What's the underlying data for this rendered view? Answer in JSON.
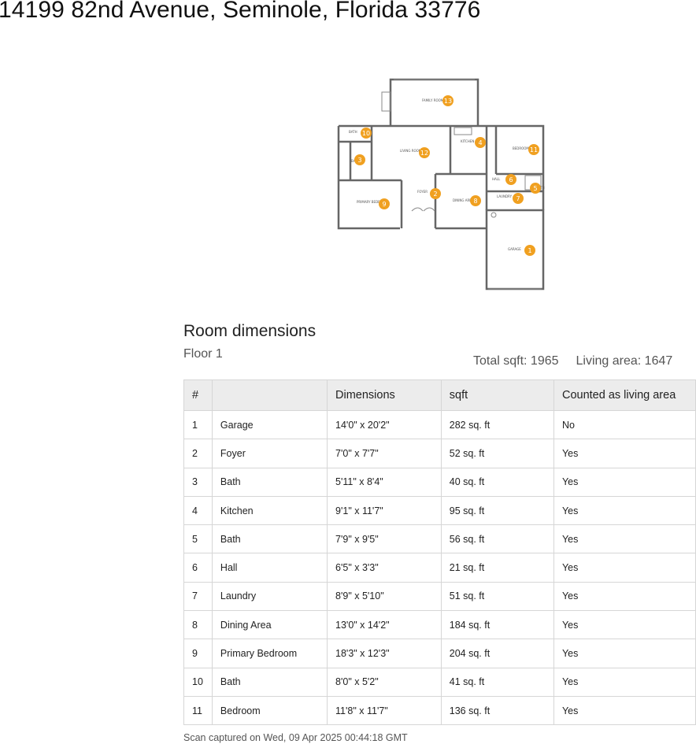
{
  "address": "14199 82nd Avenue, Seminole, Florida 33776",
  "section_title": "Room dimensions",
  "floor_label": "Floor 1",
  "total_sqft": "Total sqft: 1965",
  "living_area": "Living area: 1647",
  "table": {
    "headers": [
      "#",
      "",
      "Dimensions",
      "sqft",
      "Counted as living area"
    ],
    "rows": [
      [
        "1",
        "Garage",
        "14'0\" x 20'2\"",
        "282 sq. ft",
        "No"
      ],
      [
        "2",
        "Foyer",
        "7'0\" x 7'7\"",
        "52 sq. ft",
        "Yes"
      ],
      [
        "3",
        "Bath",
        "5'11\" x 8'4\"",
        "40 sq. ft",
        "Yes"
      ],
      [
        "4",
        "Kitchen",
        "9'1\" x 11'7\"",
        "95 sq. ft",
        "Yes"
      ],
      [
        "5",
        "Bath",
        "7'9\" x 9'5\"",
        "56 sq. ft",
        "Yes"
      ],
      [
        "6",
        "Hall",
        "6'5\" x 3'3\"",
        "21 sq. ft",
        "Yes"
      ],
      [
        "7",
        "Laundry",
        "8'9\" x 5'10\"",
        "51 sq. ft",
        "Yes"
      ],
      [
        "8",
        "Dining Area",
        "13'0\" x 14'2\"",
        "184 sq. ft",
        "Yes"
      ],
      [
        "9",
        "Primary Bedroom",
        "18'3\" x 12'3\"",
        "204 sq. ft",
        "Yes"
      ],
      [
        "10",
        "Bath",
        "8'0\" x 5'2\"",
        "41 sq. ft",
        "Yes"
      ],
      [
        "11",
        "Bedroom",
        "11'8\" x 11'7\"",
        "136 sq. ft",
        "Yes"
      ]
    ]
  },
  "floorplan": {
    "marker_color": "#f0a020",
    "markers": [
      "1",
      "2",
      "3",
      "4",
      "5",
      "6",
      "7",
      "8",
      "9",
      "10",
      "11",
      "12",
      "13"
    ],
    "room_labels": {
      "family_room": "FAMILY ROOM",
      "bath_top": "BATH",
      "living_room": "LIVING ROOM",
      "kitchen": "KITCHEN",
      "bedroom": "BEDROOM",
      "bath_side": "BATH",
      "hall": "HALL",
      "bath_right": "BATH",
      "laundry": "LAUNDRY",
      "foyer": "FOYER",
      "dining_area": "DINING AREA",
      "primary_bedroom": "PRIMARY BEDRM",
      "garage": "GARAGE"
    }
  },
  "footer": "Scan captured on Wed, 09 Apr 2025 00:44:18 GMT"
}
